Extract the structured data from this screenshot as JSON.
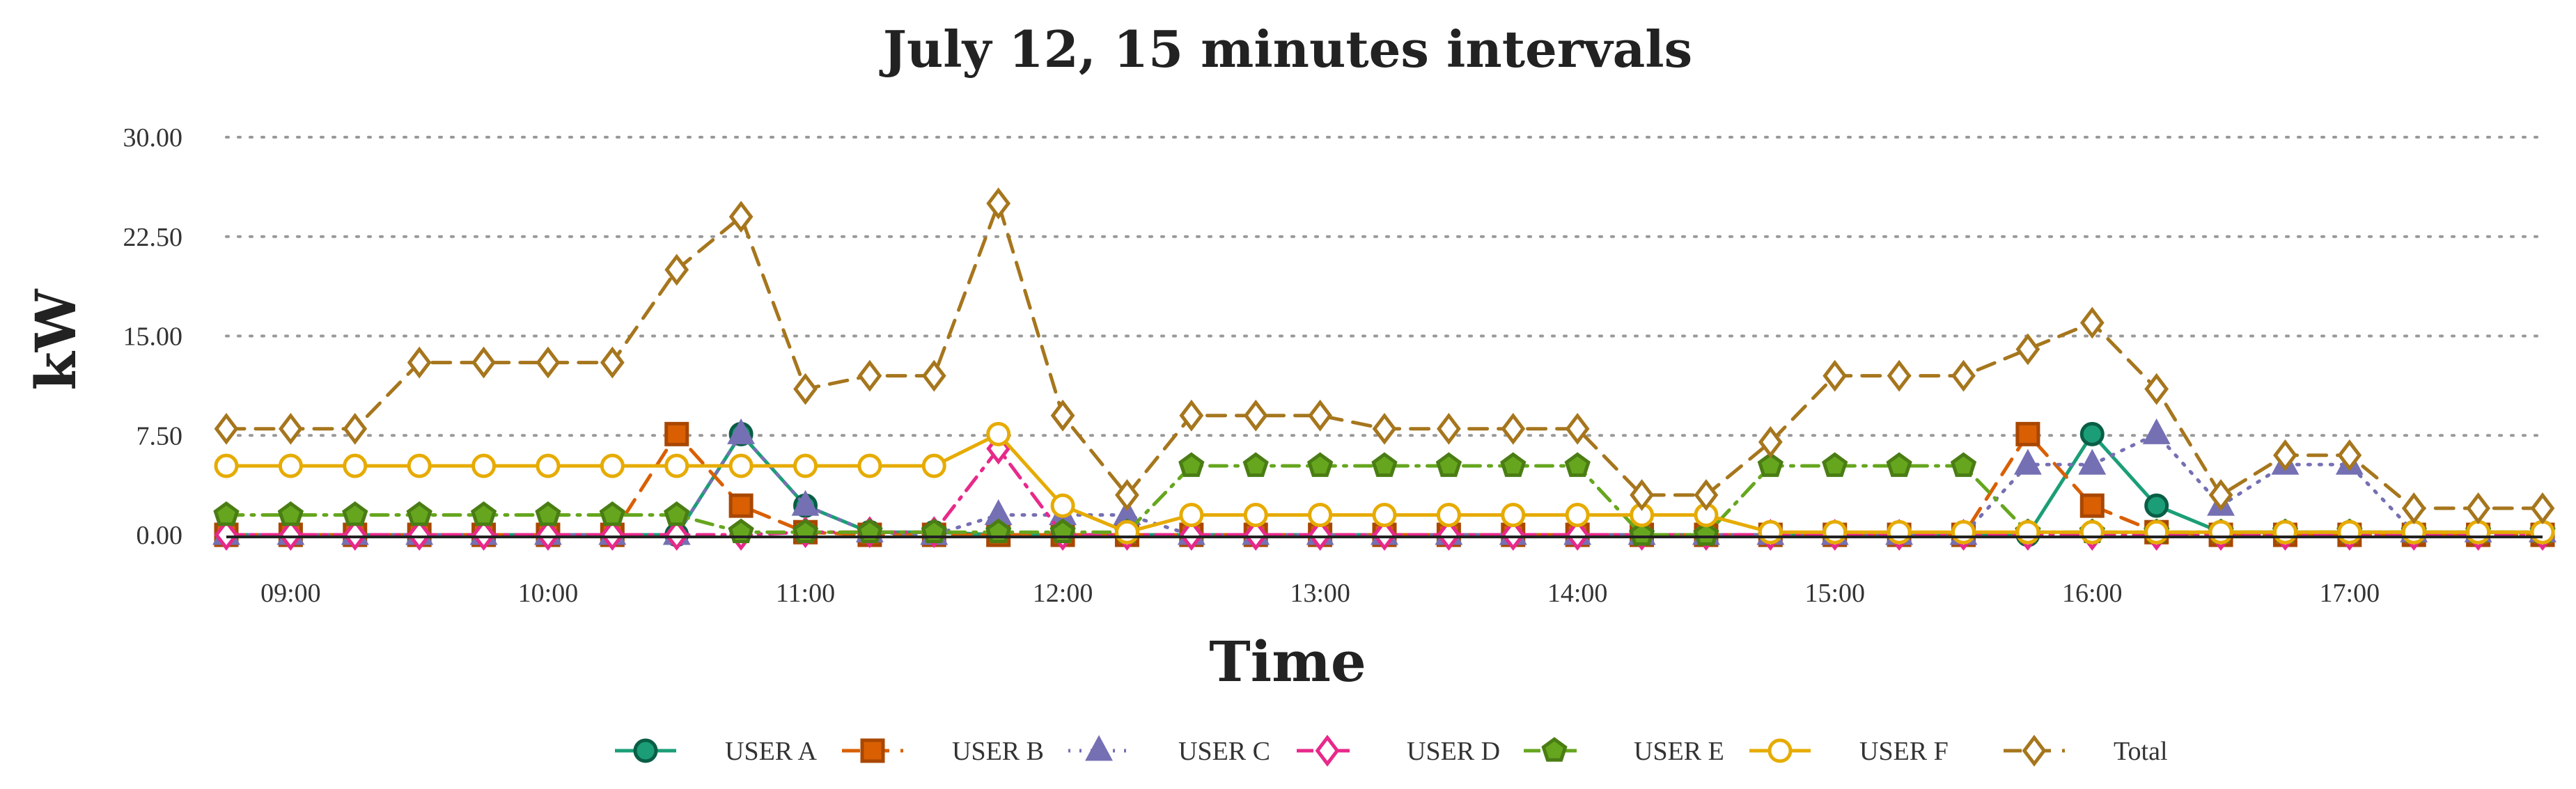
{
  "chart_data": {
    "type": "line",
    "title": "July 12, 15 minutes intervals",
    "xlabel": "Time",
    "ylabel": "kW",
    "ylim": [
      0,
      30
    ],
    "y_ticks": [
      "0.00",
      "7.50",
      "15.00",
      "22.50",
      "30.00"
    ],
    "y_tick_values": [
      0,
      7.5,
      15,
      22.5,
      30
    ],
    "x_ticks": [
      "09:00",
      "10:00",
      "11:00",
      "12:00",
      "13:00",
      "14:00",
      "15:00",
      "16:00",
      "17:00"
    ],
    "x_tick_values": [
      9,
      10,
      11,
      12,
      13,
      14,
      15,
      16,
      17
    ],
    "xlim": [
      8.75,
      17.75
    ],
    "grid": "horizontal dotted",
    "legend_position": "bottom",
    "x": [
      8.75,
      9.0,
      9.25,
      9.5,
      9.75,
      10.0,
      10.25,
      10.5,
      10.75,
      11.0,
      11.25,
      11.5,
      11.75,
      12.0,
      12.25,
      12.5,
      12.75,
      13.0,
      13.25,
      13.5,
      13.75,
      14.0,
      14.25,
      14.5,
      14.75,
      15.0,
      15.25,
      15.5,
      15.75,
      16.0,
      16.25,
      16.5,
      16.75,
      17.0,
      17.25,
      17.5,
      17.75
    ],
    "series": [
      {
        "name": "USER A",
        "color": "#1b9e77",
        "marker": "circle",
        "dash": "solid",
        "values": [
          0,
          0,
          0,
          0,
          0,
          0,
          0,
          0,
          7.6,
          2.2,
          0.2,
          0.2,
          0,
          0,
          0,
          0,
          0,
          0,
          0,
          0,
          0,
          0,
          0,
          0,
          0,
          0,
          0,
          0,
          0,
          7.6,
          2.2,
          0.2,
          0.2,
          0.2,
          0.2,
          0.2,
          0.2
        ]
      },
      {
        "name": "USER B",
        "color": "#d95f02",
        "marker": "square",
        "dash": "dashed",
        "values": [
          0,
          0,
          0,
          0,
          0,
          0,
          0,
          7.6,
          2.2,
          0.2,
          0,
          0,
          0,
          0,
          0,
          0,
          0,
          0,
          0,
          0,
          0,
          0,
          0,
          0,
          0,
          0,
          0,
          0,
          7.6,
          2.2,
          0.2,
          0,
          0,
          0,
          0,
          0,
          0
        ]
      },
      {
        "name": "USER C",
        "color": "#7570b3",
        "marker": "triangle",
        "dash": "dotted",
        "values": [
          0,
          0,
          0,
          0,
          0,
          0,
          0,
          0,
          7.6,
          2.2,
          0.2,
          0,
          1.5,
          1.5,
          1.5,
          0,
          0,
          0,
          0,
          0,
          0,
          0,
          0,
          0,
          0,
          0,
          0,
          0,
          5.3,
          5.3,
          7.6,
          2.2,
          5.3,
          5.3,
          0.2,
          0.2,
          0.2
        ]
      },
      {
        "name": "USER D",
        "color": "#e7298a",
        "marker": "diamond-open",
        "dash": "dashdot",
        "values": [
          0,
          0,
          0,
          0,
          0,
          0,
          0,
          0,
          0,
          0.2,
          0.2,
          0.2,
          6.5,
          0,
          0,
          0,
          0,
          0,
          0,
          0,
          0,
          0,
          0,
          0,
          0,
          0,
          0,
          0,
          0,
          0,
          0,
          0,
          0,
          0,
          0,
          0,
          0
        ]
      },
      {
        "name": "USER E",
        "color": "#66a61e",
        "marker": "pentagon",
        "dash": "dashdot",
        "values": [
          1.5,
          1.5,
          1.5,
          1.5,
          1.5,
          1.5,
          1.5,
          1.5,
          0.2,
          0.2,
          0.2,
          0.2,
          0.2,
          0.2,
          0.2,
          5.2,
          5.2,
          5.2,
          5.2,
          5.2,
          5.2,
          5.2,
          0,
          0,
          5.2,
          5.2,
          5.2,
          5.2,
          0.2,
          0.2,
          0.2,
          0.2,
          0.2,
          0.2,
          0.2,
          0.2,
          0.2
        ]
      },
      {
        "name": "USER F",
        "color": "#e6ab02",
        "marker": "circle-open",
        "dash": "solid",
        "values": [
          5.2,
          5.2,
          5.2,
          5.2,
          5.2,
          5.2,
          5.2,
          5.2,
          5.2,
          5.2,
          5.2,
          5.2,
          7.6,
          2.2,
          0.2,
          1.5,
          1.5,
          1.5,
          1.5,
          1.5,
          1.5,
          1.5,
          1.5,
          1.5,
          0.2,
          0.2,
          0.2,
          0.2,
          0.2,
          0.2,
          0.2,
          0.2,
          0.2,
          0.2,
          0.2,
          0.2,
          0.2
        ]
      },
      {
        "name": "Total",
        "color": "#a6761d",
        "marker": "diamond-open",
        "dash": "dashed",
        "values": [
          8,
          8,
          8,
          13,
          13,
          13,
          13,
          20,
          24,
          11,
          12,
          12,
          25,
          9,
          3,
          9,
          9,
          9,
          8,
          8,
          8,
          8,
          3,
          3,
          7,
          12,
          12,
          12,
          14,
          16,
          11,
          3,
          6,
          6,
          2,
          2,
          2
        ]
      }
    ]
  }
}
